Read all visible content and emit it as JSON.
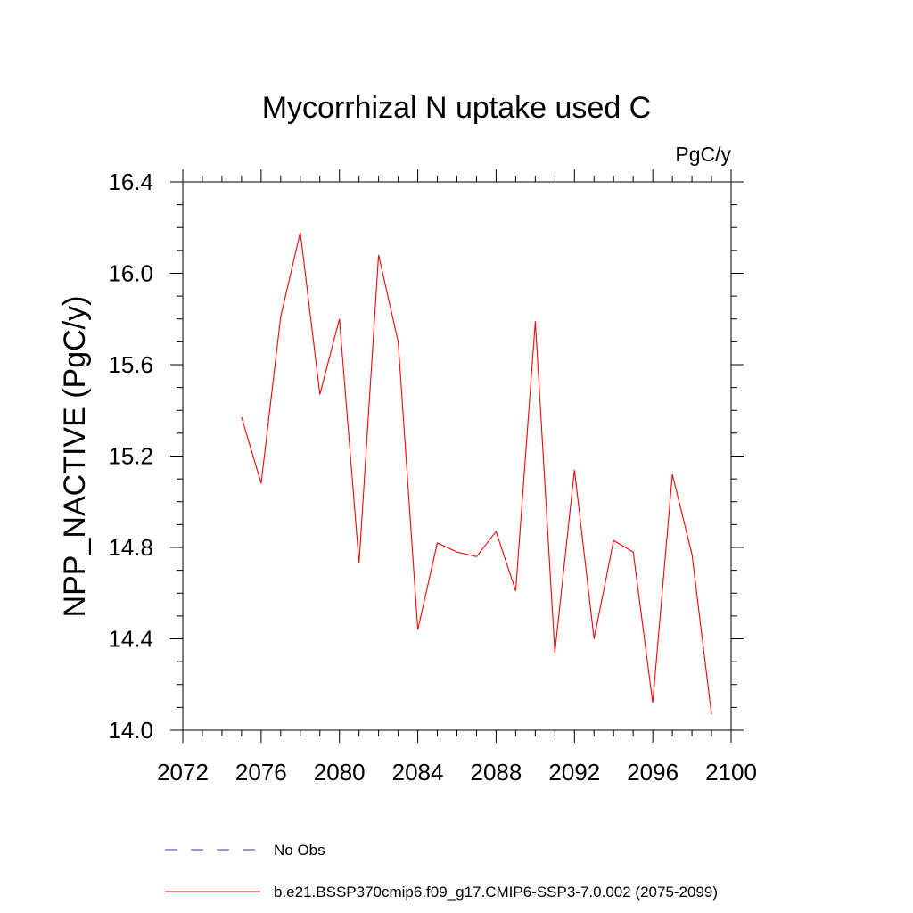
{
  "chart_data": {
    "type": "line",
    "title": "Mycorrhizal N uptake used C",
    "units_label": "PgC/y",
    "xlabel": "",
    "ylabel": "NPP_NACTIVE  (PgC/y)",
    "xlim": [
      2072,
      2100
    ],
    "ylim": [
      14.0,
      16.4
    ],
    "x_ticks": [
      "2072",
      "2076",
      "2080",
      "2084",
      "2088",
      "2092",
      "2096",
      "2100"
    ],
    "y_ticks": [
      "14.0",
      "14.4",
      "14.8",
      "15.2",
      "15.6",
      "16.0",
      "16.4"
    ],
    "grid": false,
    "legend_position": "bottom",
    "series": [
      {
        "name": "b.e21.BSSP370cmip6.f09_g17.CMIP6-SSP3-7.0.002 (2075-2099)",
        "color": "#ff0000",
        "style": "solid",
        "x": [
          2075,
          2076,
          2077,
          2078,
          2079,
          2080,
          2081,
          2082,
          2083,
          2084,
          2085,
          2086,
          2087,
          2088,
          2089,
          2090,
          2091,
          2092,
          2093,
          2094,
          2095,
          2096,
          2097,
          2098,
          2099
        ],
        "values": [
          15.37,
          15.08,
          15.81,
          16.18,
          15.47,
          15.8,
          14.73,
          16.08,
          15.7,
          14.44,
          14.82,
          14.78,
          14.76,
          14.87,
          14.61,
          15.79,
          14.34,
          15.14,
          14.4,
          14.83,
          14.78,
          14.12,
          15.12,
          14.77,
          14.07
        ]
      }
    ],
    "legend": [
      {
        "label": "No Obs",
        "color": "#3333aa",
        "style": "dashed"
      },
      {
        "label": "b.e21.BSSP370cmip6.f09_g17.CMIP6-SSP3-7.0.002 (2075-2099)",
        "color": "#ff0000",
        "style": "solid"
      }
    ]
  }
}
